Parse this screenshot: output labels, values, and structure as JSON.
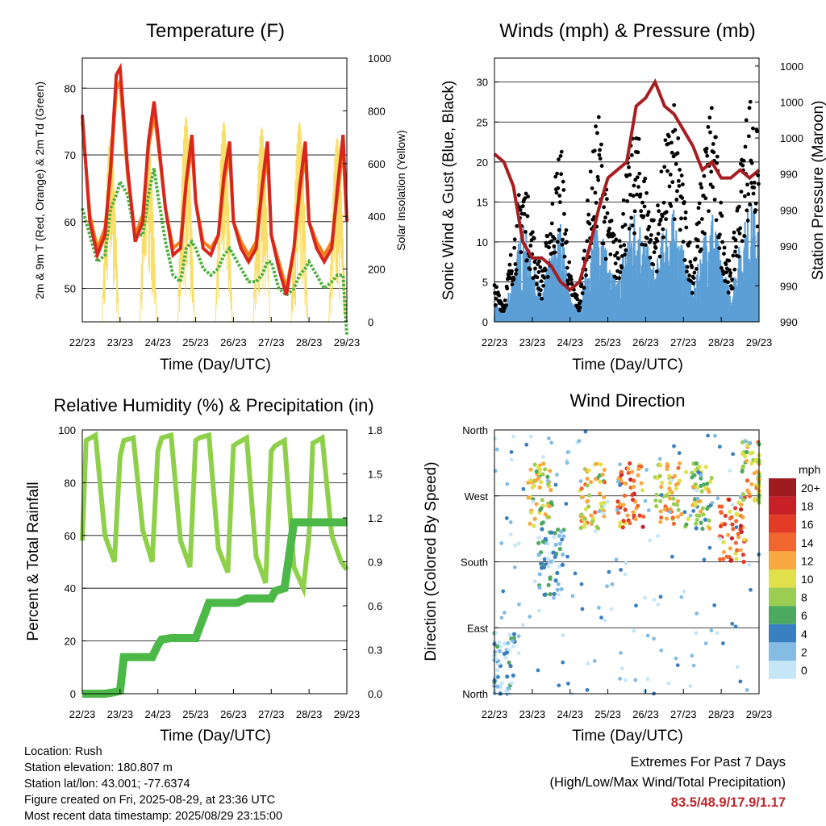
{
  "panels": {
    "temperature": {
      "title": "Temperature (F)",
      "ylabel_left": "2m & 9m T (Red, Orange) & 2m Td (Green)",
      "ylabel_right": "Solar Insolation (Yellow)",
      "xlabel": "Time (Day/UTC)",
      "yticks_left": [
        "50",
        "60",
        "70",
        "80"
      ],
      "yticks_right": [
        "0",
        "200",
        "400",
        "600",
        "800",
        "1000"
      ]
    },
    "winds": {
      "title": "Winds (mph) & Pressure (mb)",
      "ylabel_left": "Sonic Wind & Gust (Blue, Black)",
      "ylabel_right": "Station Pressure (Maroon)",
      "xlabel": "Time (Day/UTC)",
      "yticks_left": [
        "0",
        "5",
        "10",
        "15",
        "20",
        "25",
        "30"
      ],
      "yticks_right": [
        "990",
        "990",
        "990",
        "990",
        "990",
        "1000",
        "1000",
        "1000"
      ]
    },
    "humidity": {
      "title": "Relative Humidity (%) & Precipitation (in)",
      "ylabel_left": "Percent & Total Rainfall",
      "xlabel": "Time (Day/UTC)",
      "yticks_left": [
        "0",
        "20",
        "40",
        "60",
        "80",
        "100"
      ],
      "yticks_right": [
        "0.0",
        "0.3",
        "0.6",
        "0.9",
        "1.2",
        "1.5",
        "1.8"
      ]
    },
    "direction": {
      "title": "Wind Direction",
      "ylabel_left": "Direction (Colored By Speed)",
      "xlabel": "Time (Day/UTC)",
      "yticks_left": [
        "North",
        "East",
        "South",
        "West",
        "North"
      ]
    }
  },
  "x_ticks": [
    "22/23",
    "23/23",
    "24/23",
    "25/23",
    "26/23",
    "27/23",
    "28/23",
    "29/23"
  ],
  "colorbar": {
    "title": "mph",
    "labels": [
      "20+",
      "18",
      "16",
      "14",
      "12",
      "10",
      "8",
      "6",
      "4",
      "2",
      "0"
    ],
    "colors": [
      "#9e1b1f",
      "#c82027",
      "#e23b26",
      "#f0662e",
      "#f8a840",
      "#e0e04a",
      "#9acd52",
      "#4da860",
      "#3a7fc0",
      "#84bce4",
      "#c5e6f7"
    ]
  },
  "series_colors": {
    "temp_2m": "#d7261e",
    "temp_9m": "#f57f17",
    "dewpoint": "#4caf3c",
    "solar": "#f8de6a",
    "wind": "#5c9fd6",
    "gust": "#000000",
    "pressure": "#a61e22",
    "rh": "#8fd04a",
    "precip": "#4cb848"
  },
  "chart_data": [
    {
      "type": "line",
      "title": "Temperature (F)",
      "xlabel": "Time (Day/UTC)",
      "ylabel": "2m & 9m T (Red, Orange) & 2m Td (Green)",
      "ylabel_right": "Solar Insolation (Yellow)",
      "x_days": [
        0,
        0.2,
        0.4,
        0.6,
        0.75,
        0.9,
        1.0,
        1.2,
        1.4,
        1.6,
        1.75,
        1.9,
        2.0,
        2.2,
        2.4,
        2.6,
        2.75,
        2.9,
        3.0,
        3.2,
        3.4,
        3.6,
        3.75,
        3.9,
        4.0,
        4.2,
        4.4,
        4.6,
        4.75,
        4.9,
        5.0,
        5.2,
        5.4,
        5.6,
        5.75,
        5.9,
        6.0,
        6.2,
        6.4,
        6.6,
        6.75,
        6.9,
        7.0
      ],
      "series": [
        {
          "name": "2m T",
          "values": [
            76,
            60,
            55,
            58,
            68,
            82,
            83,
            68,
            57,
            60,
            72,
            78,
            73,
            62,
            55,
            56,
            66,
            73,
            63,
            56,
            55,
            58,
            67,
            72,
            60,
            56,
            54,
            56,
            65,
            72,
            58,
            53,
            49,
            56,
            65,
            72,
            60,
            56,
            54,
            56,
            65,
            73,
            60
          ]
        },
        {
          "name": "9m T",
          "values": [
            75,
            61,
            56,
            59,
            67,
            80,
            81,
            67,
            58,
            61,
            71,
            76,
            72,
            62,
            56,
            57,
            66,
            71,
            63,
            57,
            56,
            58,
            66,
            70,
            60,
            57,
            55,
            57,
            64,
            70,
            58,
            54,
            50,
            56,
            64,
            70,
            60,
            57,
            55,
            57,
            64,
            71,
            60
          ]
        },
        {
          "name": "2m Td",
          "values": [
            62,
            58,
            54,
            55,
            62,
            64,
            66,
            64,
            58,
            58,
            64,
            68,
            64,
            57,
            52,
            51,
            56,
            57,
            56,
            53,
            52,
            53,
            55,
            56,
            55,
            53,
            51,
            51,
            52,
            54,
            54,
            50,
            49,
            50,
            52,
            53,
            54,
            52,
            50,
            51,
            52,
            52,
            43
          ]
        }
      ],
      "ylim": [
        45,
        84.5
      ],
      "ylim_right": [
        0,
        1000
      ],
      "solar_peaks": [
        0,
        0,
        0,
        700,
        0,
        780,
        0,
        760,
        0,
        740,
        0,
        760,
        0,
        700,
        0,
        950
      ],
      "grid": true
    },
    {
      "type": "line",
      "title": "Winds (mph) & Pressure (mb)",
      "xlabel": "Time (Day/UTC)",
      "ylabel": "Sonic Wind & Gust (Blue, Black)",
      "ylabel_right": "Station Pressure (Maroon)",
      "x_days": [
        0,
        0.25,
        0.5,
        0.75,
        1.0,
        1.25,
        1.5,
        1.75,
        2.0,
        2.25,
        2.5,
        2.75,
        3.0,
        3.25,
        3.5,
        3.75,
        4.0,
        4.25,
        4.5,
        4.75,
        5.0,
        5.25,
        5.5,
        5.75,
        6.0,
        6.25,
        6.5,
        6.75,
        7.0
      ],
      "series": [
        {
          "name": "Wind",
          "values": [
            2,
            1,
            5,
            10,
            6,
            3,
            7,
            10,
            3,
            1,
            7,
            12,
            6,
            4,
            9,
            12,
            8,
            5,
            10,
            11,
            7,
            3,
            8,
            12,
            6,
            3,
            8,
            12,
            10
          ]
        },
        {
          "name": "Gust",
          "values": [
            4,
            2,
            9,
            16,
            10,
            5,
            12,
            19,
            5,
            2,
            14,
            22,
            12,
            8,
            16,
            20,
            15,
            10,
            18,
            22,
            14,
            6,
            16,
            24,
            12,
            5,
            16,
            24,
            18
          ]
        },
        {
          "name": "Pressure",
          "values": [
            21,
            20,
            17,
            10,
            8,
            8,
            7,
            5,
            4,
            5,
            9,
            14,
            18,
            19,
            20,
            27,
            28,
            30,
            27,
            26,
            24,
            22,
            19,
            20,
            18,
            18,
            19,
            18,
            19
          ]
        }
      ],
      "ylim": [
        0,
        33
      ],
      "grid": true
    },
    {
      "type": "line",
      "title": "Relative Humidity (%) & Precipitation (in)",
      "xlabel": "Time (Day/UTC)",
      "ylabel": "Percent & Total Rainfall",
      "x_days": [
        0,
        0.1,
        0.35,
        0.6,
        0.85,
        1.0,
        1.1,
        1.35,
        1.6,
        1.85,
        2.0,
        2.1,
        2.35,
        2.6,
        2.85,
        3.0,
        3.1,
        3.35,
        3.6,
        3.85,
        4.0,
        4.1,
        4.35,
        4.6,
        4.85,
        5.0,
        5.1,
        5.35,
        5.6,
        5.85,
        6.0,
        6.1,
        6.35,
        6.6,
        6.85,
        7.0
      ],
      "series": [
        {
          "name": "RH",
          "values": [
            58,
            96,
            98,
            60,
            50,
            90,
            96,
            97,
            62,
            50,
            92,
            97,
            98,
            58,
            48,
            96,
            97,
            98,
            55,
            46,
            94,
            95,
            97,
            52,
            42,
            92,
            94,
            96,
            48,
            40,
            60,
            95,
            97,
            60,
            50,
            47
          ]
        },
        {
          "name": "Precip",
          "values": [
            0,
            0,
            0,
            0,
            0.01,
            0.02,
            0.25,
            0.25,
            0.25,
            0.25,
            0.33,
            0.37,
            0.38,
            0.38,
            0.38,
            0.38,
            0.45,
            0.62,
            0.62,
            0.62,
            0.62,
            0.62,
            0.65,
            0.65,
            0.65,
            0.65,
            0.7,
            0.72,
            1.17,
            1.17,
            1.17,
            1.17,
            1.17,
            1.17,
            1.17,
            1.17
          ]
        }
      ],
      "ylim": [
        0,
        100
      ],
      "ylim_right": [
        0,
        1.8
      ],
      "grid": true
    },
    {
      "type": "scatter",
      "title": "Wind Direction",
      "xlabel": "Time (Day/UTC)",
      "ylabel": "Direction (Colored By Speed)",
      "y_categories": [
        "North",
        "East",
        "South",
        "West",
        "North"
      ],
      "clusters": [
        {
          "day": 0.2,
          "dir": "East-North",
          "speed": 2
        },
        {
          "day": 1.2,
          "dir": "West",
          "speed": 9
        },
        {
          "day": 1.5,
          "dir": "South",
          "speed": 3
        },
        {
          "day": 2.6,
          "dir": "West",
          "speed": 10
        },
        {
          "day": 3.6,
          "dir": "West",
          "speed": 14
        },
        {
          "day": 4.6,
          "dir": "West",
          "speed": 11
        },
        {
          "day": 5.4,
          "dir": "West",
          "speed": 8
        },
        {
          "day": 6.3,
          "dir": "South-West",
          "speed": 14
        },
        {
          "day": 6.9,
          "dir": "West-North",
          "speed": 10
        }
      ],
      "grid": true
    }
  ],
  "info": {
    "location": "Location: Rush",
    "elevation": "Station elevation: 180.807 m",
    "latlon": "Station lat/lon: 43.001; -77.6374",
    "created": "Figure created on Fri, 2025-08-29, at 23:36 UTC",
    "timestamp": "Most recent data timestamp: 2025/08/29 23:15:00"
  },
  "extremes": {
    "line1": "Extremes For Past 7 Days",
    "line2": "(High/Low/Max Wind/Total Precipitation)",
    "values": "83.5/48.9/17.9/1.17"
  }
}
